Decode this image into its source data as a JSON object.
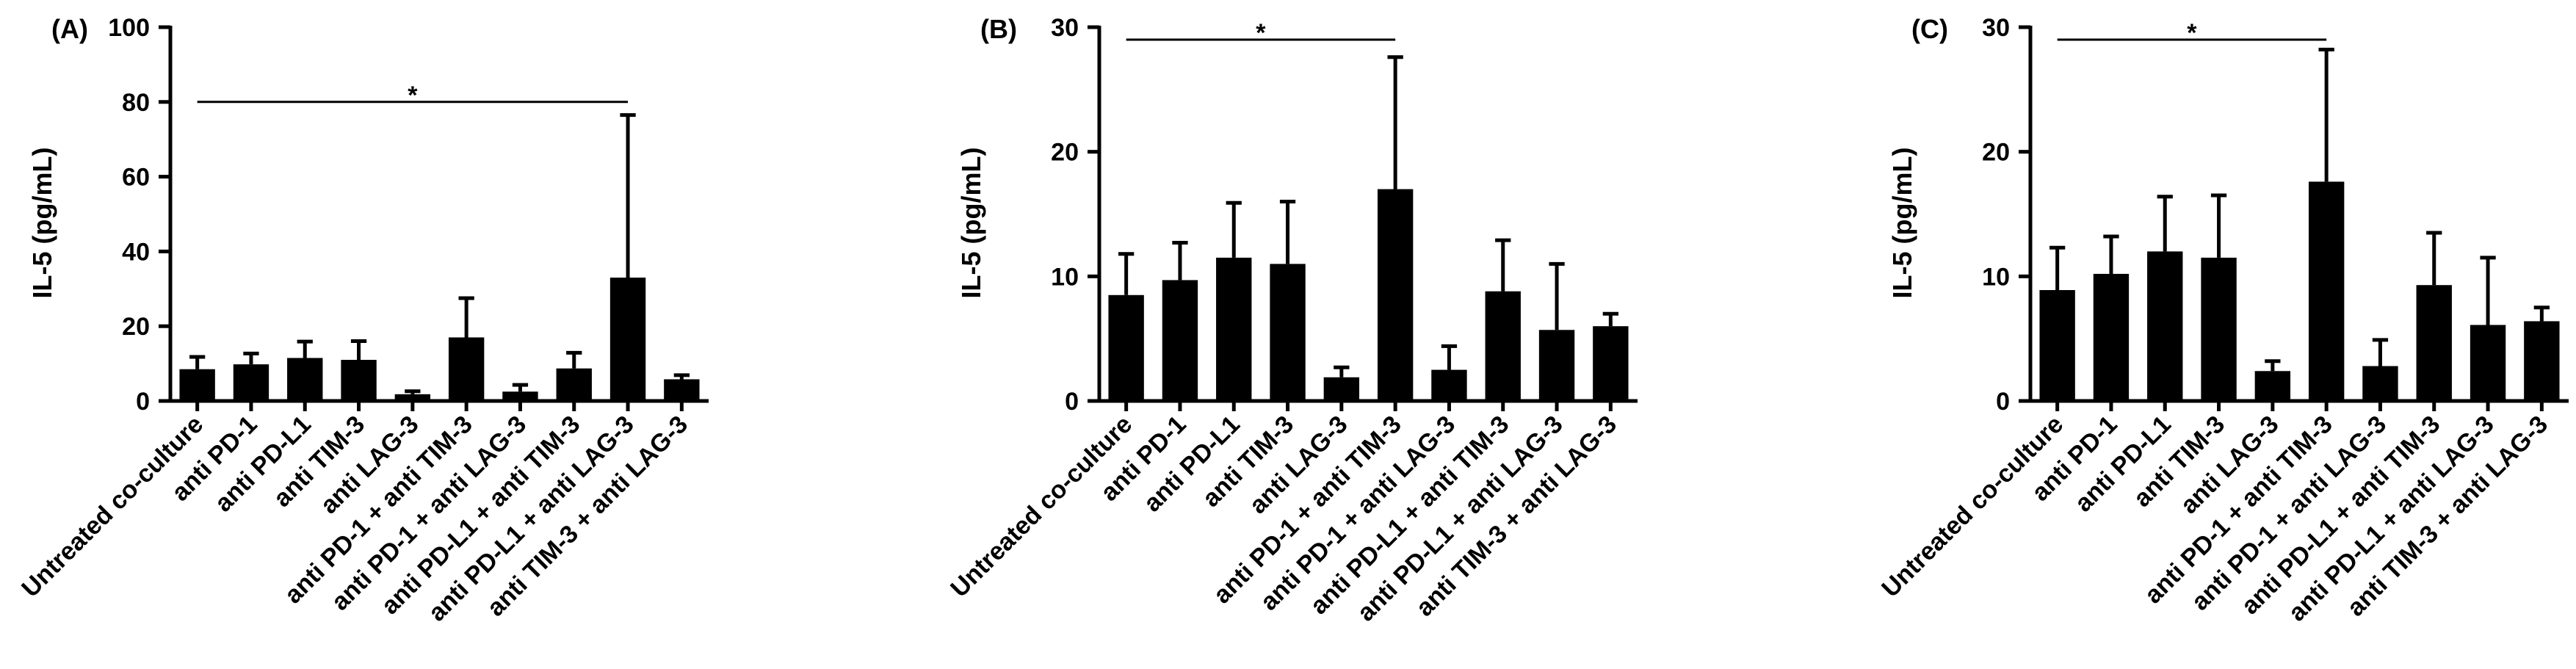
{
  "chart_data": [
    {
      "type": "bar",
      "panel_label": "(A)",
      "title": "",
      "xlabel": "",
      "ylabel": "IL-5 (pg/mL)",
      "ylim": [
        0,
        100
      ],
      "yticks": [
        0,
        20,
        40,
        60,
        80,
        100
      ],
      "grid": false,
      "categories": [
        "Untreated co-culture",
        "anti PD-1",
        "anti PD-L1",
        "anti TIM-3",
        "anti LAG-3",
        "anti PD-1 + anti TIM-3",
        "anti PD-1 + anti LAG-3",
        "anti PD-L1 + anti TIM-3",
        "anti PD-L1 + anti LAG-3",
        "anti TIM-3 + anti LAG-3"
      ],
      "values": [
        8.5,
        9.8,
        11.5,
        11.0,
        1.8,
        17.0,
        2.5,
        8.7,
        33.0,
        5.8
      ],
      "errors": [
        3.3,
        2.9,
        4.4,
        5.0,
        0.8,
        10.5,
        1.8,
        4.2,
        43.5,
        1.1
      ],
      "significance": [
        {
          "from": 0,
          "to": 8,
          "label": "*",
          "y": 80
        }
      ]
    },
    {
      "type": "bar",
      "panel_label": "(B)",
      "title": "",
      "xlabel": "",
      "ylabel": "IL-5 (pg/mL)",
      "ylim": [
        0,
        30
      ],
      "yticks": [
        0,
        10,
        20,
        30
      ],
      "grid": false,
      "categories": [
        "Untreated co-culture",
        "anti PD-1",
        "anti PD-L1",
        "anti TIM-3",
        "anti LAG-3",
        "anti PD-1 + anti TIM-3",
        "anti PD-1 + anti LAG-3",
        "anti PD-L1 + anti TIM-3",
        "anti PD-L1 + anti LAG-3",
        "anti TIM-3 + anti LAG-3"
      ],
      "values": [
        8.5,
        9.7,
        11.5,
        11.0,
        1.9,
        17.0,
        2.5,
        8.8,
        5.7,
        6.0
      ],
      "errors": [
        3.3,
        3.0,
        4.4,
        5.0,
        0.8,
        10.6,
        1.9,
        4.1,
        5.3,
        1.0
      ],
      "significance": [
        {
          "from": 0,
          "to": 5,
          "label": "*",
          "y": 29
        }
      ]
    },
    {
      "type": "bar",
      "panel_label": "(C)",
      "title": "",
      "xlabel": "",
      "ylabel": "IL-5 (pg/mL)",
      "ylim": [
        0,
        30
      ],
      "yticks": [
        0,
        10,
        20,
        30
      ],
      "grid": false,
      "categories": [
        "Untreated co-culture",
        "anti PD-1",
        "anti PD-L1",
        "anti TIM-3",
        "anti LAG-3",
        "anti PD-1 + anti TIM-3",
        "anti PD-1 + anti LAG-3",
        "anti PD-L1 + anti TIM-3",
        "anti PD-L1 + anti LAG-3",
        "anti TIM-3 + anti LAG-3"
      ],
      "values": [
        8.9,
        10.2,
        12.0,
        11.5,
        2.4,
        17.6,
        2.8,
        9.3,
        6.1,
        6.4
      ],
      "errors": [
        3.4,
        3.0,
        4.4,
        5.0,
        0.8,
        10.6,
        2.1,
        4.2,
        5.4,
        1.1
      ],
      "significance": [
        {
          "from": 0,
          "to": 5,
          "label": "*",
          "y": 29
        }
      ]
    }
  ]
}
